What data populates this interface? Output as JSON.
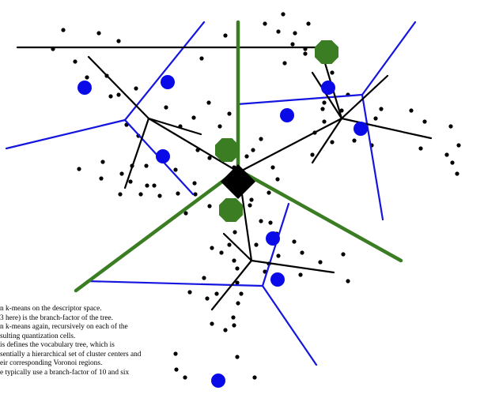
{
  "caption": {
    "lines": [
      "n k-means on the descriptor space.",
      "3 here) is the branch-factor of the tree.",
      "n k-means again, recursively on each of the",
      "sulting quantization cells.",
      "is defines the vocabulary tree, which is",
      "sentially a hierarchical set of cluster centers and",
      "eir corresponding Voronoi regions.",
      "e typically use a branch-factor of 10 and six"
    ]
  },
  "colors": {
    "background": "#ffffff",
    "level1_boundary": "#3a7d22",
    "level1_center": "#3a7d22",
    "level2_boundary": "#1515e0",
    "level2_center": "#0a0ae8",
    "tree_edge": "#000000",
    "root_marker": "#000000",
    "data_point": "#000000"
  }
}
